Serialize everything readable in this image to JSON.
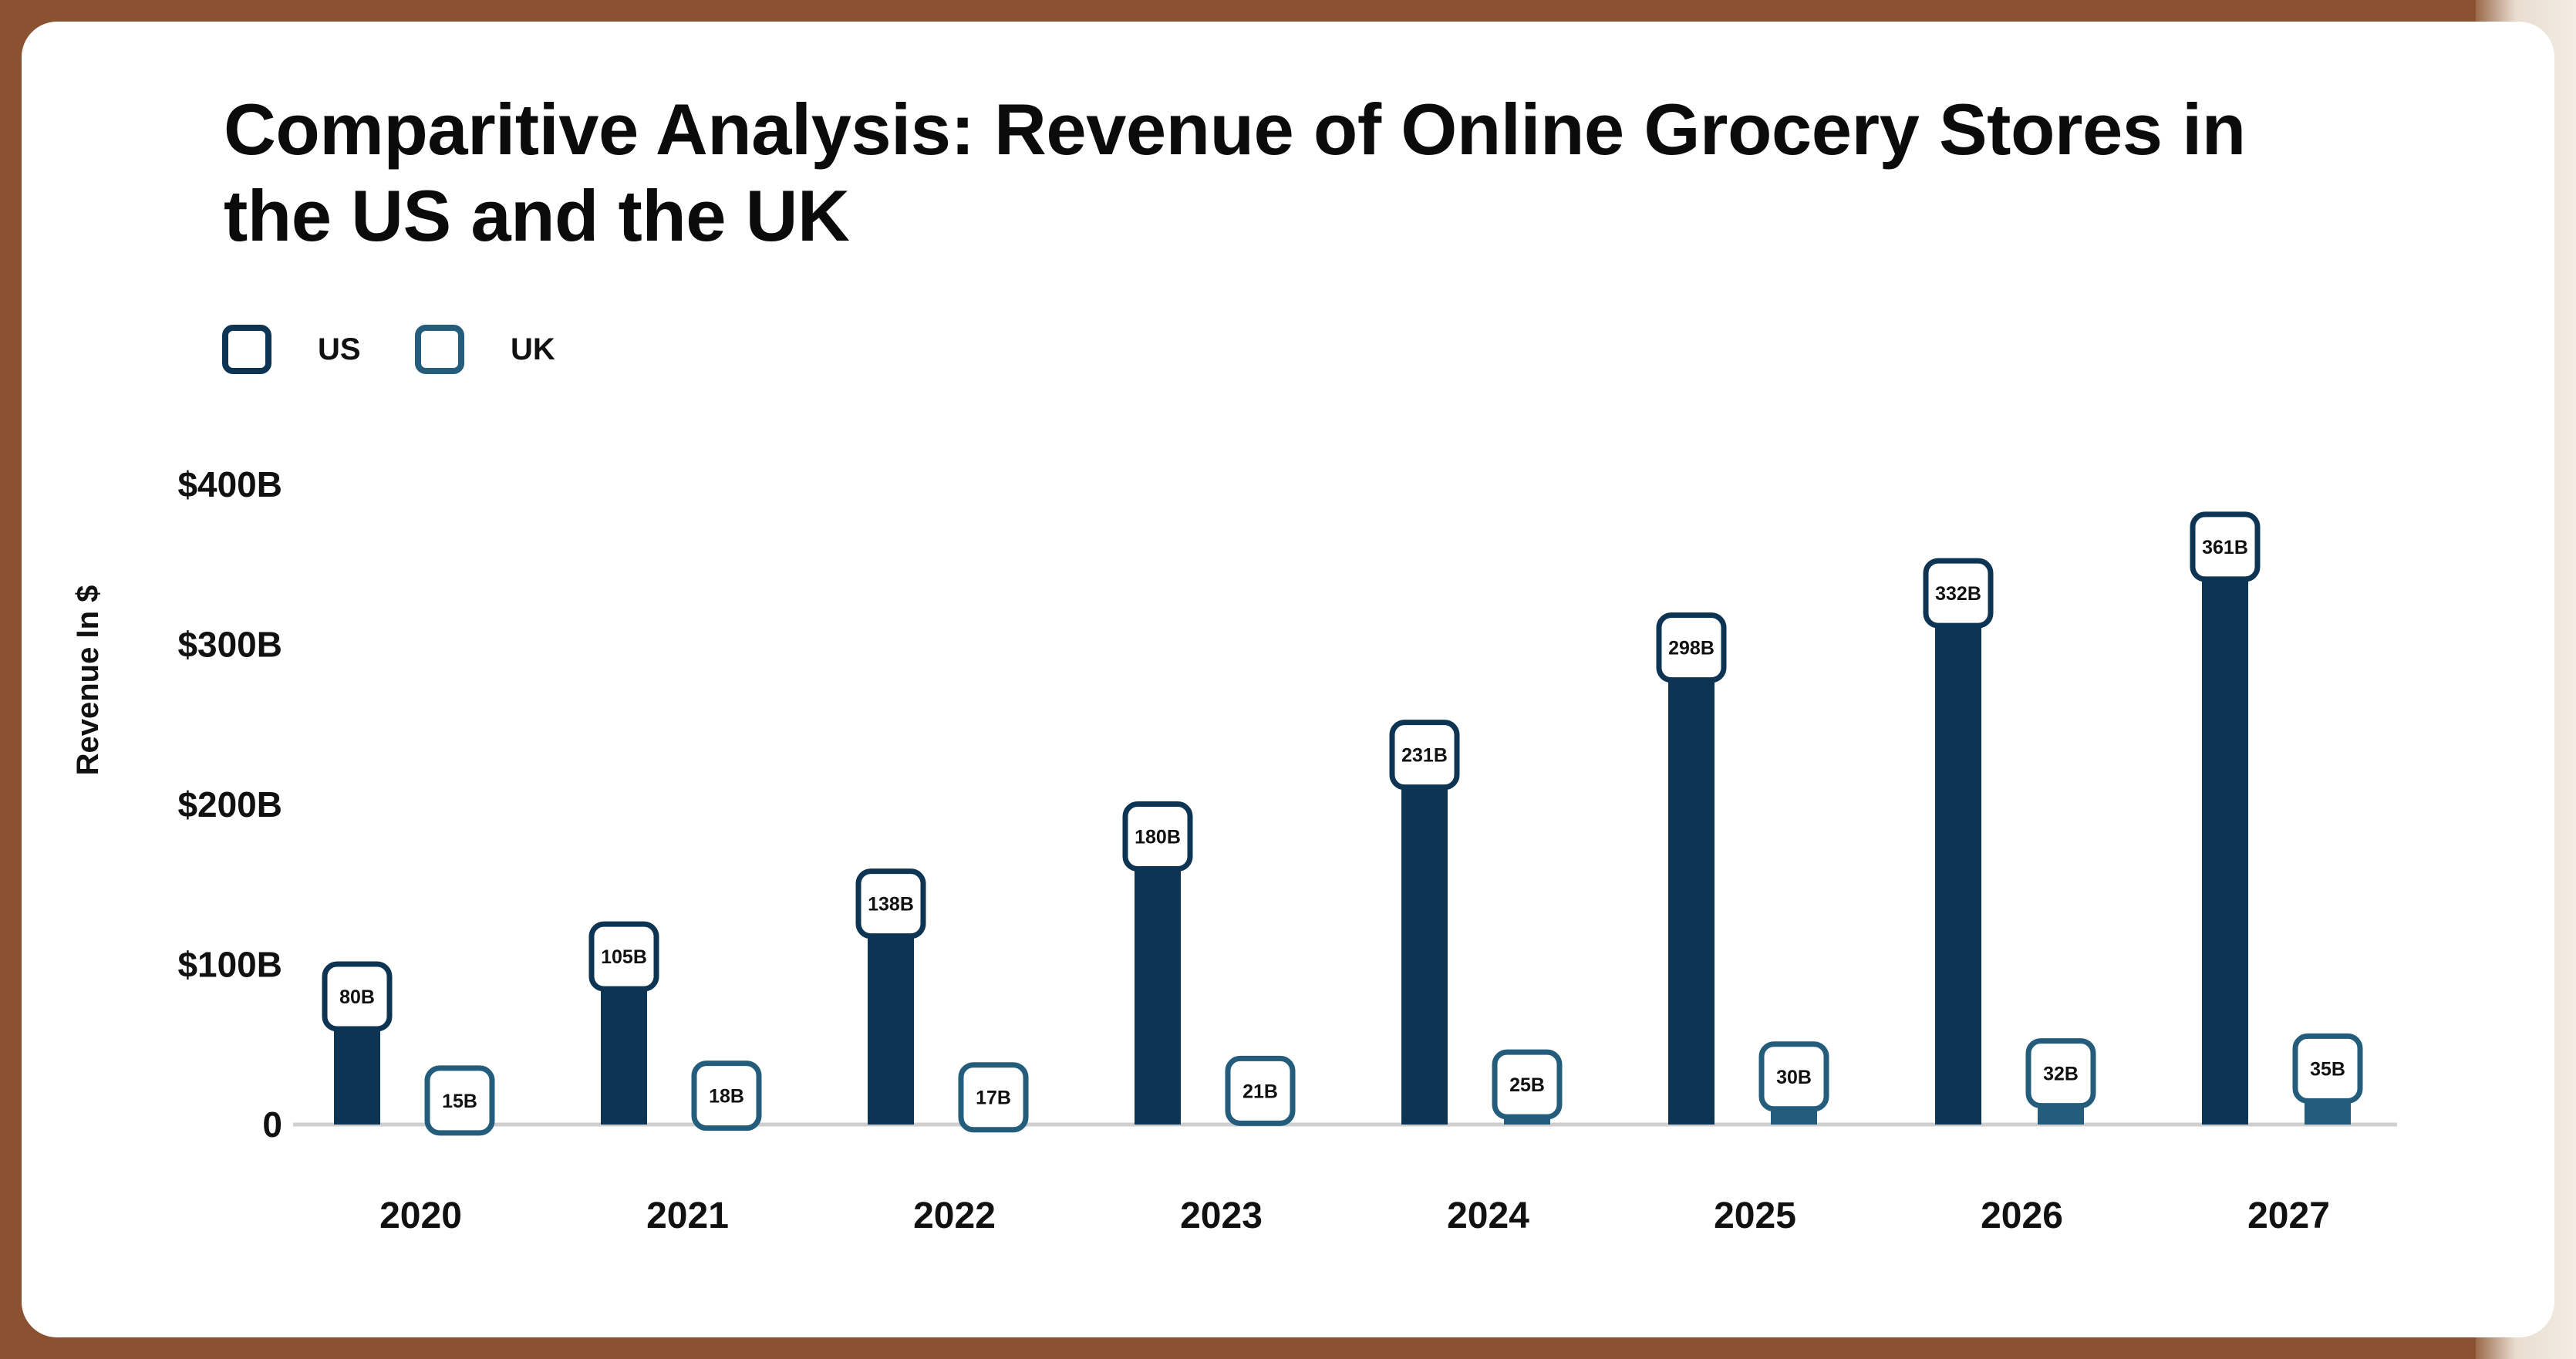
{
  "chart_data": {
    "type": "bar",
    "title": "Comparitive Analysis: Revenue of Online Grocery Stores in the US and the UK",
    "ylabel": "Revenue In $",
    "xlabel": "",
    "categories": [
      "2020",
      "2021",
      "2022",
      "2023",
      "2024",
      "2025",
      "2026",
      "2027"
    ],
    "series": [
      {
        "name": "US",
        "color": "#0d3553",
        "values": [
          80,
          105,
          138,
          180,
          231,
          298,
          332,
          361
        ],
        "labels": [
          "80B",
          "105B",
          "138B",
          "180B",
          "231B",
          "298B",
          "332B",
          "361B"
        ]
      },
      {
        "name": "UK",
        "color": "#245d7c",
        "values": [
          15,
          18,
          17,
          21,
          25,
          30,
          32,
          35
        ],
        "labels": [
          "15B",
          "18B",
          "17B",
          "21B",
          "25B",
          "30B",
          "32B",
          "35B"
        ]
      }
    ],
    "yticks": [
      0,
      100,
      200,
      300,
      400
    ],
    "ytick_labels": [
      "0",
      "$100B",
      "$200B",
      "$300B",
      "$400B"
    ],
    "ylim": [
      0,
      400
    ],
    "grid": false,
    "legend_position": "top-left",
    "data_labels": true
  }
}
